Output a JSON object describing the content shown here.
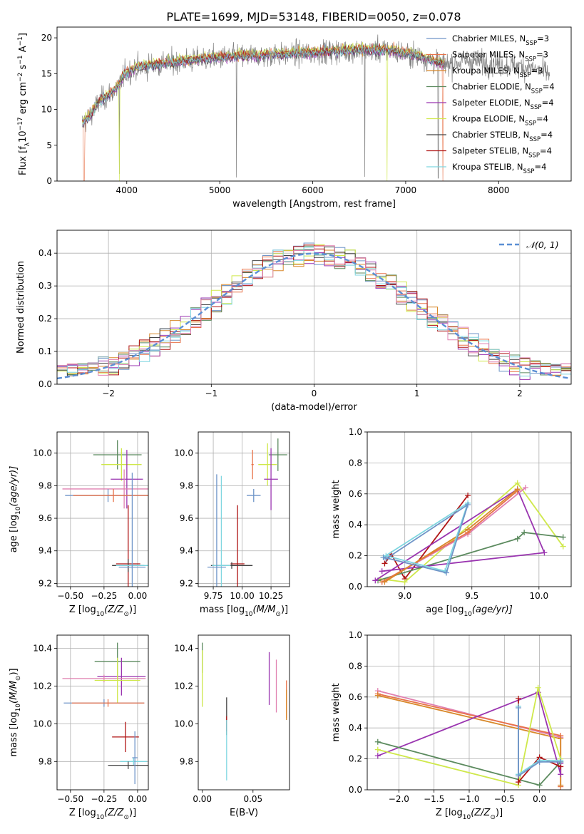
{
  "figure_title": "PLATE=1699, MJD=53148, FIBERID=0050, z=0.078",
  "colors": {
    "chabrier_miles": "#6f95c8",
    "salpeter_miles": "#e8734a",
    "kroupa_miles": "#d8882a",
    "chabrier_elodie": "#5b8a5e",
    "salpeter_elodie": "#9a35b0",
    "kroupa_elodie": "#cfe84a",
    "chabrier_stelib": "#444444",
    "salpeter_stelib": "#b01515",
    "kroupa_stelib": "#7fd6e0",
    "pink": "#e080b0",
    "data": "#808080",
    "gaussian": "#5b8fd4"
  },
  "chart_data": [
    {
      "type": "line",
      "id": "spectrum",
      "title": "PLATE=1699, MJD=53148, FIBERID=0050, z=0.078",
      "xlabel": "wavelength [Angstrom, rest frame]",
      "ylabel_parts": [
        "Flux [f",
        "λ",
        "10",
        "−17",
        " erg cm",
        "−2",
        " s",
        "−1",
        " A",
        "−1",
        "]"
      ],
      "xlim": [
        3250,
        8780
      ],
      "ylim": [
        0,
        21.5
      ],
      "xticks": [
        4000,
        5000,
        6000,
        7000,
        8000
      ],
      "yticks": [
        0,
        5,
        10,
        15,
        20
      ],
      "legend_position": "right",
      "legend": [
        {
          "label": "Chabrier MILES, N",
          "sub": "SSP",
          "tail": "=3",
          "color_key": "chabrier_miles"
        },
        {
          "label": "Salpeter MILES, N",
          "sub": "SSP",
          "tail": "=3",
          "color_key": "salpeter_miles"
        },
        {
          "label": "Kroupa MILES, N",
          "sub": "SSP",
          "tail": "=3",
          "color_key": "kroupa_miles"
        },
        {
          "label": "Chabrier ELODIE, N",
          "sub": "SSP",
          "tail": "=4",
          "color_key": "chabrier_elodie"
        },
        {
          "label": "Salpeter ELODIE, N",
          "sub": "SSP",
          "tail": "=4",
          "color_key": "salpeter_elodie"
        },
        {
          "label": "Kroupa ELODIE, N",
          "sub": "SSP",
          "tail": "=4",
          "color_key": "kroupa_elodie"
        },
        {
          "label": "Chabrier STELIB, N",
          "sub": "SSP",
          "tail": "=4",
          "color_key": "chabrier_stelib"
        },
        {
          "label": "Salpeter STELIB, N",
          "sub": "SSP",
          "tail": "=4",
          "color_key": "salpeter_stelib"
        },
        {
          "label": "Kroupa STELIB, N",
          "sub": "SSP",
          "tail": "=4",
          "color_key": "kroupa_stelib"
        }
      ],
      "continuum_knots": [
        [
          3520,
          8.0
        ],
        [
          3600,
          9.0
        ],
        [
          3700,
          11.0
        ],
        [
          3800,
          12.0
        ],
        [
          3900,
          13.0
        ],
        [
          3980,
          15.0
        ],
        [
          4100,
          15.8
        ],
        [
          4400,
          16.4
        ],
        [
          4800,
          17.0
        ],
        [
          5200,
          17.4
        ],
        [
          5600,
          17.6
        ],
        [
          6000,
          17.9
        ],
        [
          6400,
          18.2
        ],
        [
          6800,
          18.3
        ],
        [
          7100,
          17.6
        ],
        [
          7400,
          16.3
        ],
        [
          7700,
          16.8
        ],
        [
          8000,
          16.3
        ],
        [
          8300,
          15.9
        ],
        [
          8550,
          15.0
        ]
      ],
      "model_range": [
        3520,
        7420
      ],
      "model_offsets": [
        0.1,
        0.3,
        0.0,
        0.2,
        -0.2,
        0.4,
        -0.1,
        0.2,
        0.0
      ],
      "data_dips": [
        [
          3920,
          1.0
        ],
        [
          5180,
          0.5
        ],
        [
          6560,
          0.6
        ],
        [
          7350,
          0.4
        ]
      ],
      "model_drops": [
        [
          3920,
          "kroupa_elodie"
        ],
        [
          6800,
          "kroupa_elodie"
        ],
        [
          7400,
          "salpeter_miles"
        ],
        [
          3540,
          "salpeter_miles"
        ]
      ]
    },
    {
      "type": "step",
      "id": "residuals",
      "xlabel": "(data-model)/error",
      "ylabel": "Normed distribution",
      "xlim": [
        -2.5,
        2.5
      ],
      "ylim": [
        0,
        0.47
      ],
      "xticks": [
        -2,
        -1,
        0,
        1,
        2
      ],
      "yticks": [
        0,
        0.1,
        0.2,
        0.3,
        0.4
      ],
      "grid": true,
      "legend_position": "top-right",
      "legend_label": "𝒩(0, 1)",
      "bin_width": 0.1,
      "series_color_keys": [
        "chabrier_miles",
        "salpeter_miles",
        "kroupa_miles",
        "chabrier_elodie",
        "salpeter_elodie",
        "kroupa_elodie",
        "chabrier_stelib",
        "salpeter_stelib",
        "kroupa_stelib",
        "pink"
      ]
    },
    {
      "type": "errorbar",
      "id": "age_vs_Z",
      "xlabel_parts": [
        "Z [log",
        "10",
        "(Z/Z",
        "⊙",
        ")]"
      ],
      "ylabel_parts": [
        "age  [log",
        "10",
        "(age/yr)]"
      ],
      "xlim": [
        -0.6,
        0.08
      ],
      "ylim": [
        9.18,
        10.13
      ],
      "xticks": [
        -0.5,
        -0.25,
        0.0
      ],
      "xticklabels": [
        "−0.50",
        "−0.25",
        "0.00"
      ],
      "yticks": [
        9.2,
        9.4,
        9.6,
        9.8,
        10.0
      ],
      "grid": true,
      "points": [
        {
          "color_key": "chabrier_elodie",
          "x": -0.15,
          "y": 9.99,
          "xerr": 0.18,
          "yerr": 0.09
        },
        {
          "color_key": "kroupa_elodie",
          "x": -0.12,
          "y": 9.93,
          "xerr": 0.15,
          "yerr": 0.1
        },
        {
          "color_key": "salpeter_elodie",
          "x": -0.08,
          "y": 9.84,
          "xerr": 0.12,
          "yerr": 0.18
        },
        {
          "color_key": "pink",
          "x": -0.1,
          "y": 9.78,
          "xerr": 0.46,
          "yerr": 0.12
        },
        {
          "color_key": "chabrier_miles",
          "x": -0.22,
          "y": 9.74,
          "xerr": 0.32,
          "yerr": 0.04
        },
        {
          "color_key": "salpeter_miles",
          "x": -0.18,
          "y": 9.74,
          "xerr": 0.3,
          "yerr": 0.04
        },
        {
          "color_key": "salpeter_stelib",
          "x": -0.07,
          "y": 9.32,
          "xerr": 0.09,
          "yerr": 0.36
        },
        {
          "color_key": "chabrier_stelib",
          "x": -0.07,
          "y": 9.31,
          "xerr": 0.12,
          "yerr": 0.04
        },
        {
          "color_key": "kroupa_stelib",
          "x": -0.04,
          "y": 9.31,
          "xerr": 0.12,
          "yerr": 0.02
        },
        {
          "color_key": "chabrier_miles",
          "x": -0.04,
          "y": 9.3,
          "xerr": 0.1,
          "yerr": 0.58
        }
      ]
    },
    {
      "type": "errorbar",
      "id": "age_vs_mass",
      "xlabel_parts": [
        "mass [log",
        "10",
        "(M/M",
        "⊙",
        ")]"
      ],
      "ylabel": "",
      "xlim": [
        9.62,
        10.41
      ],
      "ylim": [
        9.18,
        10.13
      ],
      "xticks": [
        9.75,
        10.0,
        10.25
      ],
      "xticklabels": [
        "9.75",
        "10.00",
        "10.25"
      ],
      "yticks": [
        9.2,
        9.4,
        9.6,
        9.8,
        10.0
      ],
      "grid": true,
      "points": [
        {
          "color_key": "chabrier_elodie",
          "x": 10.31,
          "y": 9.99,
          "xerr": 0.08,
          "yerr": 0.1
        },
        {
          "color_key": "salpeter_miles",
          "x": 10.09,
          "y": 9.93,
          "xerr": 0.01,
          "yerr": 0.09
        },
        {
          "color_key": "kroupa_elodie",
          "x": 10.22,
          "y": 9.93,
          "xerr": 0.08,
          "yerr": 0.13
        },
        {
          "color_key": "salpeter_elodie",
          "x": 10.25,
          "y": 9.84,
          "xerr": 0.06,
          "yerr": 0.19
        },
        {
          "color_key": "chabrier_miles",
          "x": 10.1,
          "y": 9.74,
          "xerr": 0.06,
          "yerr": 0.04
        },
        {
          "color_key": "salpeter_stelib",
          "x": 9.96,
          "y": 9.32,
          "xerr": 0.06,
          "yerr": 0.36
        },
        {
          "color_key": "chabrier_stelib",
          "x": 9.91,
          "y": 9.31,
          "xerr": 0.18,
          "yerr": 0.02
        },
        {
          "color_key": "kroupa_stelib",
          "x": 9.82,
          "y": 9.31,
          "xerr": 0.08,
          "yerr": 0.55
        },
        {
          "color_key": "chabrier_miles",
          "x": 9.78,
          "y": 9.3,
          "xerr": 0.08,
          "yerr": 0.57
        }
      ]
    },
    {
      "type": "line",
      "id": "mass_weight_vs_age",
      "xlabel_parts": [
        "age  [log",
        "10",
        "(age/yr)]"
      ],
      "ylabel": "mass weight",
      "xlim": [
        8.72,
        10.24
      ],
      "ylim": [
        0,
        1.0
      ],
      "xticks": [
        9.0,
        9.5,
        10.0
      ],
      "xticklabels": [
        "9.0",
        "9.5",
        "10.0"
      ],
      "yticks": [
        0.0,
        0.2,
        0.4,
        0.6,
        0.8,
        1.0
      ],
      "grid": true,
      "series": [
        {
          "color_key": "salpeter_stelib",
          "x": [
            8.85,
            8.9,
            9.0,
            9.47
          ],
          "y": [
            0.15,
            0.21,
            0.05,
            0.59
          ]
        },
        {
          "color_key": "kroupa_elodie",
          "x": [
            8.82,
            9.0,
            9.84,
            10.18
          ],
          "y": [
            0.05,
            0.03,
            0.67,
            0.26
          ]
        },
        {
          "color_key": "chabrier_elodie",
          "x": [
            8.8,
            9.84,
            9.89,
            10.18
          ],
          "y": [
            0.04,
            0.31,
            0.35,
            0.32
          ]
        },
        {
          "color_key": "salpeter_elodie",
          "x": [
            8.78,
            9.84,
            10.04,
            8.83
          ],
          "y": [
            0.04,
            0.63,
            0.22,
            0.1
          ]
        },
        {
          "color_key": "pink",
          "x": [
            8.83,
            9.47,
            9.9
          ],
          "y": [
            0.03,
            0.34,
            0.64
          ]
        },
        {
          "color_key": "salpeter_miles",
          "x": [
            8.83,
            9.47,
            9.84
          ],
          "y": [
            0.03,
            0.35,
            0.62
          ]
        },
        {
          "color_key": "kroupa_miles",
          "x": [
            8.85,
            9.47,
            9.84
          ],
          "y": [
            0.03,
            0.37,
            0.63
          ]
        },
        {
          "color_key": "kroupa_stelib",
          "x": [
            8.86,
            9.3,
            9.47,
            8.84
          ],
          "y": [
            0.2,
            0.1,
            0.54,
            0.19
          ]
        },
        {
          "color_key": "chabrier_miles",
          "x": [
            8.84,
            9.31,
            9.47,
            8.86
          ],
          "y": [
            0.19,
            0.09,
            0.53,
            0.18
          ]
        }
      ]
    },
    {
      "type": "errorbar",
      "id": "mass_vs_Z",
      "xlabel_parts": [
        "Z [log",
        "10",
        "(Z/Z",
        "⊙",
        ")]"
      ],
      "ylabel_parts": [
        "mass [log",
        "10",
        "(M/M",
        "⊙",
        ")]"
      ],
      "xlim": [
        -0.6,
        0.08
      ],
      "ylim": [
        9.65,
        10.47
      ],
      "xticks": [
        -0.5,
        -0.25,
        0.0
      ],
      "xticklabels": [
        "−0.50",
        "−0.25",
        "0.00"
      ],
      "yticks": [
        9.8,
        10.0,
        10.2,
        10.4
      ],
      "grid": true,
      "points": [
        {
          "color_key": "chabrier_elodie",
          "x": -0.15,
          "y": 10.33,
          "xerr": 0.17,
          "yerr": 0.1
        },
        {
          "color_key": "salpeter_elodie",
          "x": -0.12,
          "y": 10.25,
          "xerr": 0.18,
          "yerr": 0.1
        },
        {
          "color_key": "pink",
          "x": -0.25,
          "y": 10.24,
          "xerr": 0.31,
          "yerr": 0.02
        },
        {
          "color_key": "kroupa_elodie",
          "x": -0.15,
          "y": 10.23,
          "xerr": 0.17,
          "yerr": 0.12
        },
        {
          "color_key": "chabrier_miles",
          "x": -0.25,
          "y": 10.11,
          "xerr": 0.3,
          "yerr": 0.02
        },
        {
          "color_key": "salpeter_miles",
          "x": -0.22,
          "y": 10.11,
          "xerr": 0.27,
          "yerr": 0.02
        },
        {
          "color_key": "salpeter_stelib",
          "x": -0.09,
          "y": 9.93,
          "xerr": 0.1,
          "yerr": 0.08
        },
        {
          "color_key": "kroupa_stelib",
          "x": -0.03,
          "y": 9.8,
          "xerr": 0.1,
          "yerr": 0.02
        },
        {
          "color_key": "chabrier_stelib",
          "x": -0.07,
          "y": 9.78,
          "xerr": 0.15,
          "yerr": 0.02
        },
        {
          "color_key": "chabrier_miles",
          "x": -0.02,
          "y": 9.82,
          "xerr": 0.02,
          "yerr": 0.14
        }
      ]
    },
    {
      "type": "errorbar",
      "id": "mass_vs_ebv",
      "xlabel": "E(B-V)",
      "ylabel": "",
      "xlim": [
        -0.004,
        0.086
      ],
      "ylim": [
        9.65,
        10.47
      ],
      "xticks": [
        0.0,
        0.05
      ],
      "xticklabels": [
        "0.00",
        "0.05"
      ],
      "yticks": [
        9.8,
        10.0,
        10.2,
        10.4
      ],
      "grid": false,
      "points": [
        {
          "color_key": "chabrier_elodie",
          "x": 0.0,
          "y": 10.35,
          "xerr": 0,
          "yerr": 0.08
        },
        {
          "color_key": "kroupa_elodie",
          "x": 0.0,
          "y": 10.24,
          "xerr": 0,
          "yerr": 0.15
        },
        {
          "color_key": "chabrier_stelib",
          "x": 0.024,
          "y": 10.04,
          "xerr": 0,
          "yerr": 0.1
        },
        {
          "color_key": "salpeter_stelib",
          "x": 0.024,
          "y": 10.0,
          "xerr": 0,
          "yerr": 0.04
        },
        {
          "color_key": "kroupa_stelib",
          "x": 0.024,
          "y": 9.86,
          "xerr": 0,
          "yerr": 0.16
        },
        {
          "color_key": "salpeter_elodie",
          "x": 0.066,
          "y": 10.24,
          "xerr": 0,
          "yerr": 0.14
        },
        {
          "color_key": "pink",
          "x": 0.073,
          "y": 10.2,
          "xerr": 0,
          "yerr": 0.14
        },
        {
          "color_key": "salpeter_miles",
          "x": 0.083,
          "y": 10.13,
          "xerr": 0,
          "yerr": 0.1
        },
        {
          "color_key": "kroupa_miles",
          "x": 0.083,
          "y": 10.1,
          "xerr": 0,
          "yerr": 0.08
        }
      ]
    },
    {
      "type": "line",
      "id": "mass_weight_vs_Z",
      "xlabel_parts": [
        "Z [log",
        "10",
        "(Z/Z",
        "⊙",
        ")]"
      ],
      "ylabel": "mass weight",
      "xlim": [
        -2.45,
        0.45
      ],
      "ylim": [
        0,
        1.0
      ],
      "xticks": [
        -2.0,
        -1.5,
        -1.0,
        -0.5,
        0.0
      ],
      "xticklabels": [
        "−2.0",
        "−1.5",
        "−1.0",
        "−0.5",
        "0.0"
      ],
      "yticks": [
        0.0,
        0.2,
        0.4,
        0.6,
        0.8,
        1.0
      ],
      "grid": true,
      "series": [
        {
          "color_key": "pink",
          "x": [
            -2.3,
            0.3
          ],
          "y": [
            0.64,
            0.34
          ]
        },
        {
          "color_key": "salpeter_miles",
          "x": [
            -2.3,
            0.3,
            0.3
          ],
          "y": [
            0.62,
            0.35,
            0.02
          ]
        },
        {
          "color_key": "kroupa_miles",
          "x": [
            -2.3,
            0.3,
            0.3
          ],
          "y": [
            0.61,
            0.33,
            0.03
          ]
        },
        {
          "color_key": "salpeter_elodie",
          "x": [
            -2.3,
            -0.02,
            0.3,
            0.3
          ],
          "y": [
            0.22,
            0.63,
            0.1,
            0.17
          ]
        },
        {
          "color_key": "chabrier_elodie",
          "x": [
            -2.3,
            0.0,
            0.3
          ],
          "y": [
            0.31,
            0.03,
            0.18
          ]
        },
        {
          "color_key": "kroupa_elodie",
          "x": [
            -2.3,
            -0.3,
            -0.02,
            0.3
          ],
          "y": [
            0.26,
            0.03,
            0.66,
            0.2
          ]
        },
        {
          "color_key": "salpeter_stelib",
          "x": [
            -0.3,
            -0.3,
            0.0,
            0.3
          ],
          "y": [
            0.59,
            0.05,
            0.21,
            0.15
          ]
        },
        {
          "color_key": "kroupa_stelib",
          "x": [
            -0.3,
            -0.3,
            0.0,
            0.3
          ],
          "y": [
            0.54,
            0.1,
            0.19,
            0.19
          ]
        },
        {
          "color_key": "chabrier_miles",
          "x": [
            -0.3,
            -0.3,
            0.0,
            0.3
          ],
          "y": [
            0.53,
            0.09,
            0.18,
            0.18
          ]
        }
      ]
    }
  ]
}
